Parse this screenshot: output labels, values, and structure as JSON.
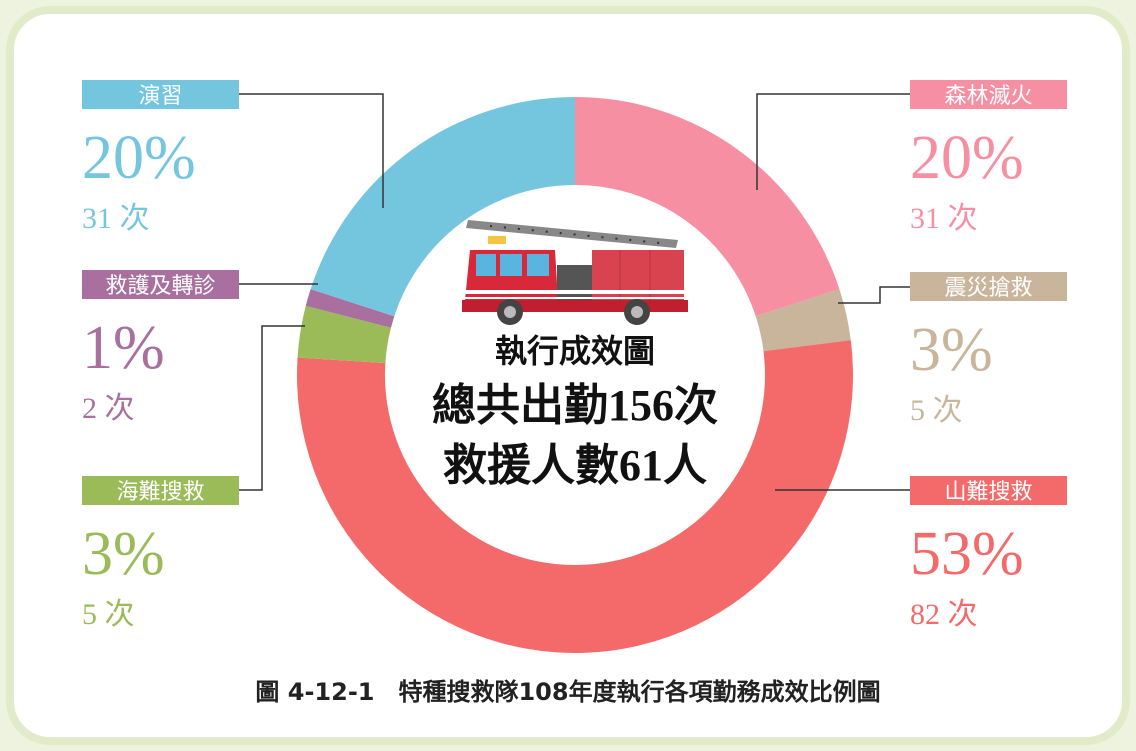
{
  "chart_data": {
    "type": "donut",
    "title": "執行成效圖",
    "center_lines": [
      "總共出勤156次",
      "救援人數61人"
    ],
    "caption": "圖 4-12-1　特種搜救隊108年度執行各項勤務成效比例圖",
    "categories": [
      "森林滅火",
      "震災搶救",
      "山難搜救",
      "海難搜救",
      "救護及轉診",
      "演習"
    ],
    "values": [
      20,
      3,
      53,
      3,
      1,
      20
    ],
    "value_labels": [
      "20%",
      "3%",
      "53%",
      "3%",
      "1%",
      "20%"
    ],
    "count_labels": [
      "31 次",
      "5 次",
      "82 次",
      "5 次",
      "2 次",
      "31 次"
    ],
    "colors": [
      "#f78fa3",
      "#c9b59c",
      "#f46a6a",
      "#9bbb59",
      "#a9709f",
      "#74c6df"
    ]
  }
}
